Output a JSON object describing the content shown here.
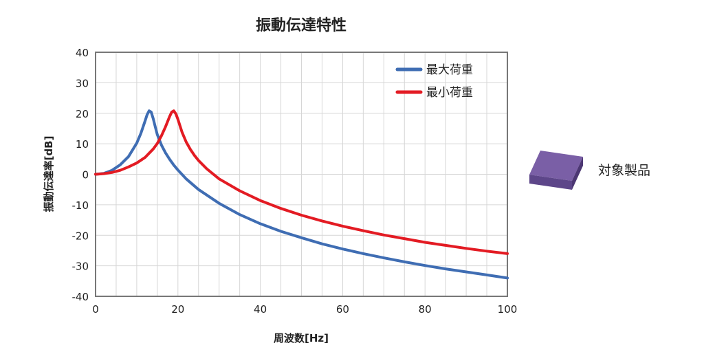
{
  "chart_data": {
    "type": "line",
    "title": "振動伝達特性",
    "xlabel": "周波数[Hz]",
    "ylabel": "振動伝達率[dB]",
    "xlim": [
      0,
      100
    ],
    "ylim": [
      -40,
      40
    ],
    "x_ticks": [
      0,
      20,
      40,
      60,
      80,
      100
    ],
    "y_ticks": [
      40,
      30,
      20,
      10,
      0,
      -10,
      -20,
      -30,
      -40
    ],
    "x_minor_step": 5,
    "grid": true,
    "legend": "top-right",
    "series": [
      {
        "name": "最大荷重",
        "color": "#3f6db3",
        "x": [
          0,
          2,
          4,
          6,
          8,
          10,
          11,
          12,
          12.5,
          13,
          13.5,
          14,
          14.5,
          15,
          16,
          17,
          18,
          19,
          20,
          22,
          25,
          30,
          35,
          40,
          45,
          50,
          55,
          60,
          65,
          70,
          75,
          80,
          85,
          90,
          95,
          100
        ],
        "y": [
          0,
          0.3,
          1.3,
          3.1,
          5.8,
          10.2,
          13.4,
          17.4,
          19.5,
          20.8,
          20.4,
          18.2,
          15.5,
          13.0,
          9.6,
          7.0,
          4.9,
          3.0,
          1.4,
          -1.5,
          -5.0,
          -9.5,
          -13.2,
          -16.2,
          -18.7,
          -20.8,
          -22.8,
          -24.5,
          -26.0,
          -27.4,
          -28.7,
          -29.9,
          -31.0,
          -32.0,
          -33.0,
          -34.0
        ]
      },
      {
        "name": "最小荷重",
        "color": "#e31b23",
        "x": [
          0,
          2,
          4,
          6,
          8,
          10,
          12,
          14,
          15,
          16,
          17,
          18,
          18.5,
          19,
          19.5,
          20,
          21,
          22,
          23,
          24,
          25,
          27,
          30,
          35,
          40,
          45,
          50,
          55,
          60,
          65,
          70,
          75,
          80,
          85,
          90,
          95,
          100
        ],
        "y": [
          0,
          0.2,
          0.6,
          1.3,
          2.4,
          3.7,
          5.5,
          8.3,
          10.1,
          12.6,
          15.6,
          19.0,
          20.4,
          20.8,
          19.8,
          18.0,
          13.8,
          10.6,
          8.2,
          6.2,
          4.5,
          1.8,
          -1.5,
          -5.4,
          -8.6,
          -11.2,
          -13.4,
          -15.3,
          -17.0,
          -18.5,
          -19.9,
          -21.1,
          -22.3,
          -23.3,
          -24.3,
          -25.2,
          -26.0
        ]
      }
    ]
  },
  "product": {
    "label": "対象製品",
    "color": "#7a5fa6"
  }
}
